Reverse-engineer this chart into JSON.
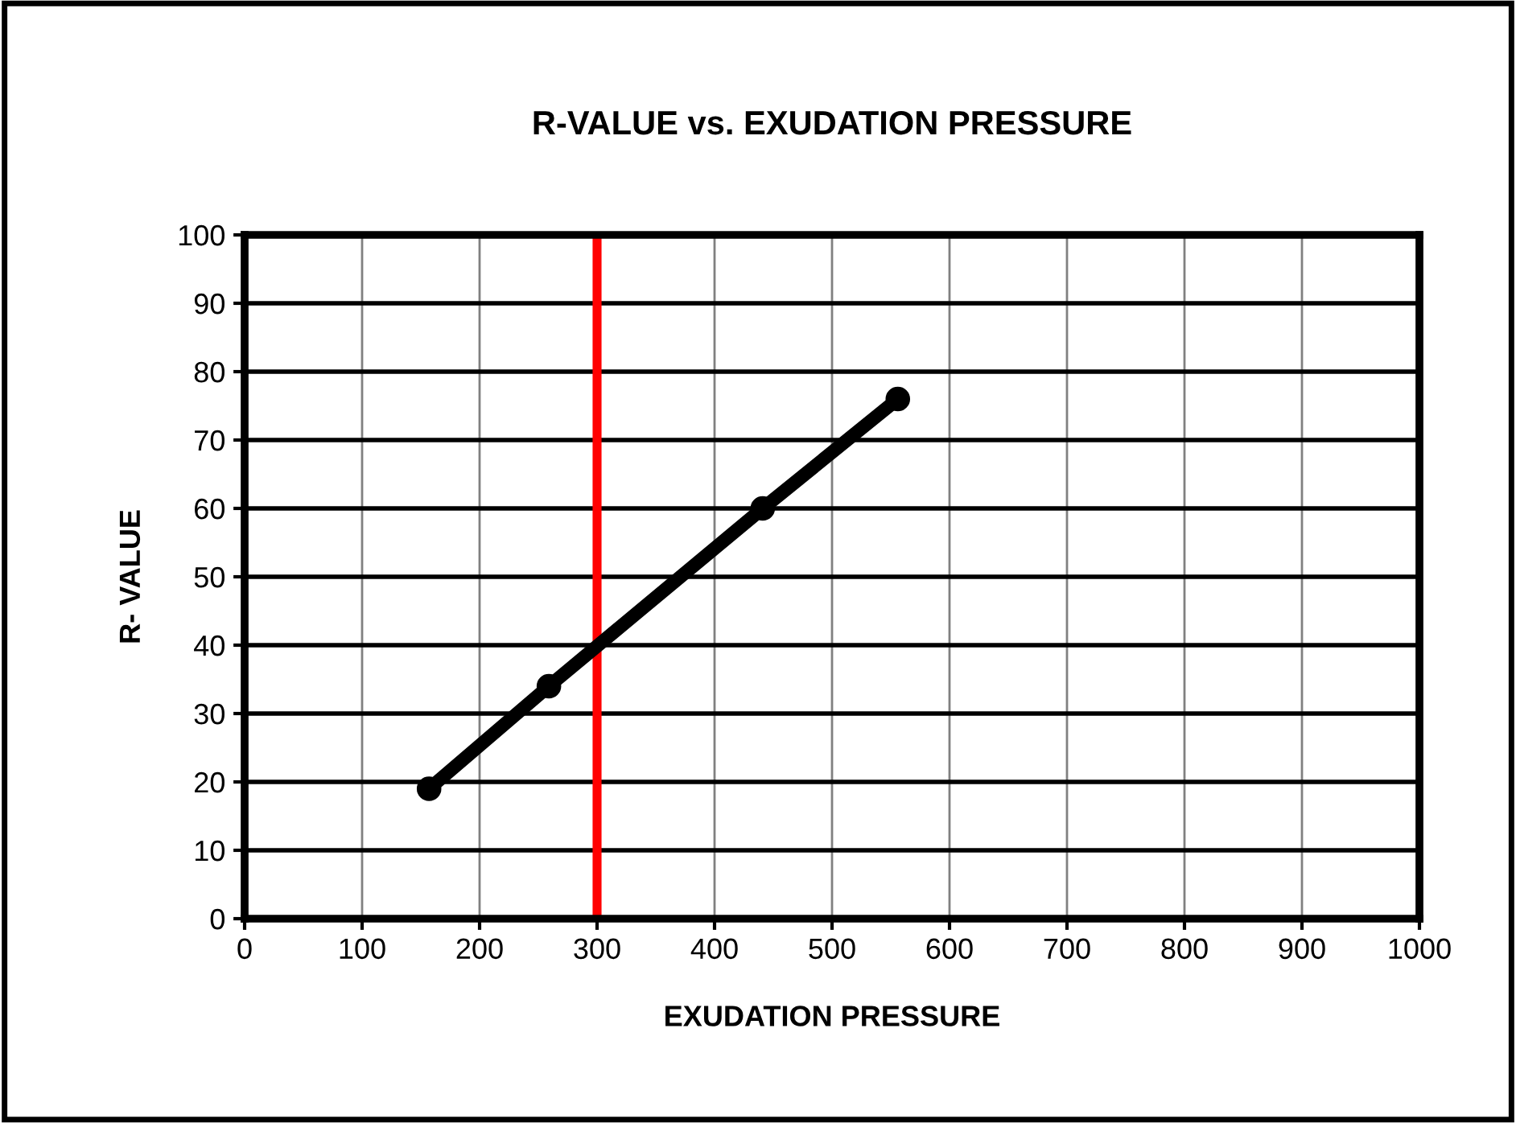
{
  "chart_data": {
    "type": "line",
    "title": "R-VALUE vs. EXUDATION PRESSURE",
    "xlabel": "EXUDATION PRESSURE",
    "ylabel": "R- VALUE",
    "x": [
      157,
      259,
      441,
      556
    ],
    "series": [
      {
        "color": "#000000",
        "values": [
          19,
          34,
          60,
          76
        ]
      }
    ],
    "marker": "circle",
    "line_style": "solid",
    "grid": true,
    "xlim": [
      0,
      1000
    ],
    "xticks": [
      0,
      100,
      200,
      300,
      400,
      500,
      600,
      700,
      800,
      900,
      1000
    ],
    "ylim": [
      0,
      100
    ],
    "yticks": [
      0,
      10,
      20,
      30,
      40,
      50,
      60,
      70,
      80,
      90,
      100
    ],
    "ref_lines": [
      {
        "axis": "x",
        "value": 300,
        "color": "#ff0000"
      }
    ]
  }
}
